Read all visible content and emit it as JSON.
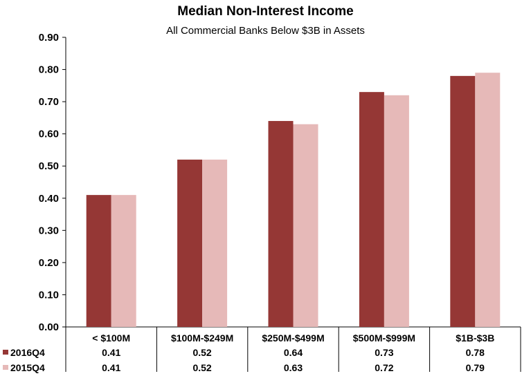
{
  "chart_data": {
    "type": "bar",
    "title": "Median Non-Interest Income",
    "subtitle": "All Commercial Banks Below $3B in Assets",
    "categories": [
      "< $100M",
      "$100M-$249M",
      "$250M-$499M",
      "$500M-$999M",
      "$1B-$3B"
    ],
    "series": [
      {
        "name": "2016Q4",
        "color": "#953735",
        "values": [
          0.41,
          0.52,
          0.64,
          0.73,
          0.78
        ],
        "labels": [
          "0.41",
          "0.52",
          "0.64",
          "0.73",
          "0.78"
        ]
      },
      {
        "name": "2015Q4",
        "color": "#e6b9b8",
        "values": [
          0.41,
          0.52,
          0.63,
          0.72,
          0.79
        ],
        "labels": [
          "0.41",
          "0.52",
          "0.63",
          "0.72",
          "0.79"
        ]
      }
    ],
    "ylim": [
      0,
      0.9
    ],
    "yticks": [
      "0.00",
      "0.10",
      "0.20",
      "0.30",
      "0.40",
      "0.50",
      "0.60",
      "0.70",
      "0.80",
      "0.90"
    ],
    "grid": false,
    "legend": "data-table"
  }
}
